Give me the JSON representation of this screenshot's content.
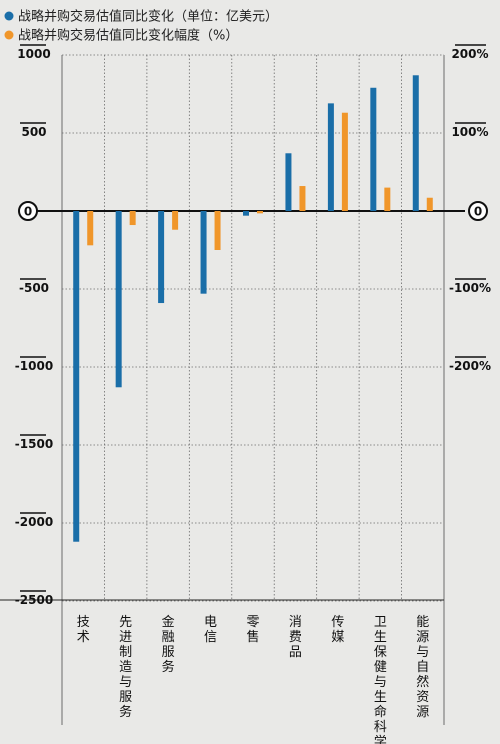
{
  "chart_data": {
    "type": "bar",
    "legend": [
      {
        "name": "战略并购交易估值同比变化（单位：亿美元）",
        "color": "#1a6ea8"
      },
      {
        "name": "战略并购交易估值同比变化幅度（%）",
        "color": "#f0962a"
      }
    ],
    "categories": [
      "技术",
      "先进制造与服务",
      "金融服务",
      "电信",
      "零售",
      "消费品",
      "传媒",
      "卫生保健与生命科学",
      "能源与自然资源"
    ],
    "series": [
      {
        "name": "战略并购交易估值同比变化（单位：亿美元）",
        "axis": "left",
        "color": "#1a6ea8",
        "values": [
          -2120,
          -1130,
          -590,
          -530,
          -30,
          370,
          690,
          790,
          870
        ]
      },
      {
        "name": "战略并购交易估值同比变化幅度（%）",
        "axis": "right",
        "color": "#f0962a",
        "values": [
          -44,
          -18,
          -24,
          -50,
          -3,
          32,
          126,
          30,
          17
        ]
      }
    ],
    "left_axis": {
      "ylim": [
        -2500,
        1000
      ],
      "ticks": [
        1000,
        500,
        0,
        -500,
        -1000,
        -1500,
        -2000,
        -2500
      ],
      "tick_labels": [
        "1000",
        "500",
        "0",
        "-500",
        "-1000",
        "-1500",
        "-2000",
        "-2500"
      ]
    },
    "right_axis": {
      "ylim": [
        -500,
        200
      ],
      "ticks": [
        200,
        100,
        0,
        -100,
        -200
      ],
      "tick_labels": [
        "200%",
        "100%",
        "0",
        "-100%",
        "-200%"
      ]
    },
    "grid": true,
    "legend_position": "top-left"
  }
}
